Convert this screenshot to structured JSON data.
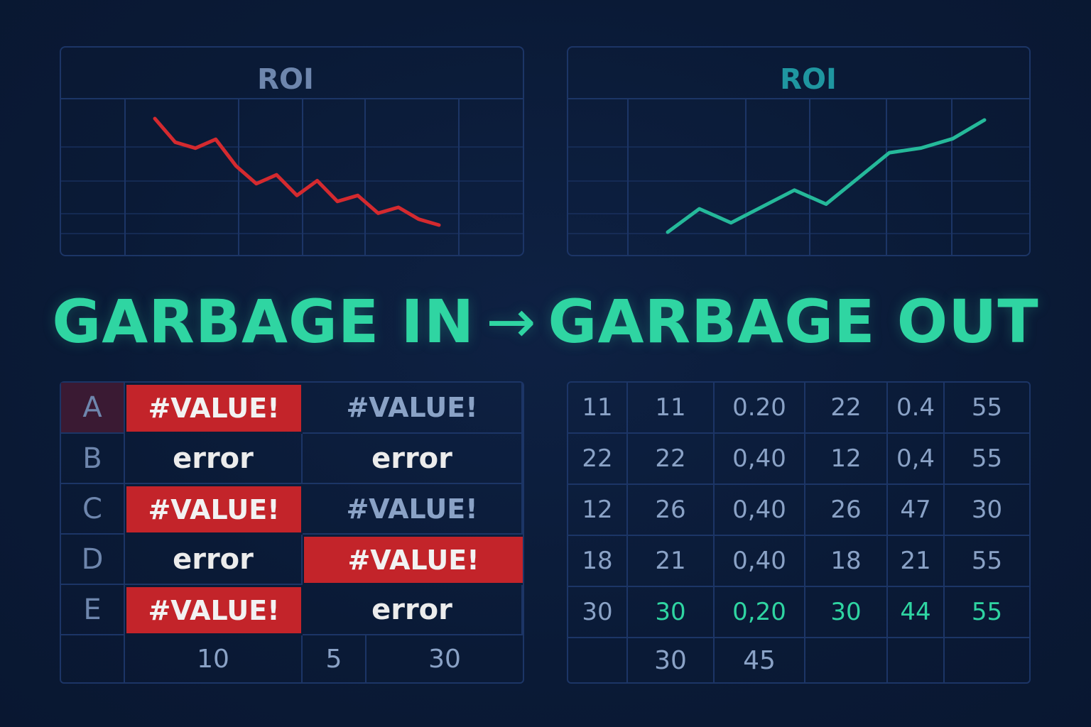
{
  "colors": {
    "background": "#0a1a36",
    "grid": "#1c3566",
    "bad_line": "#d42a2f",
    "good_line": "#25b99a",
    "accent_green": "#2fd5a2",
    "error_red": "#c3242a"
  },
  "chart_data": [
    {
      "type": "line",
      "title": "ROI",
      "series": [
        {
          "values": [
            100,
            92,
            90,
            93,
            84,
            78,
            81,
            74,
            79,
            72,
            74,
            68,
            70,
            66,
            64
          ]
        }
      ],
      "color": "#d42a2f",
      "grid": true
    },
    {
      "type": "line",
      "title": "ROI",
      "series": [
        {
          "values": [
            10,
            20,
            14,
            21,
            28,
            22,
            33,
            44,
            46,
            50,
            58
          ]
        }
      ],
      "color": "#25b99a",
      "grid": true
    }
  ],
  "headline": {
    "left": "GARBAGE IN",
    "arrow": "→",
    "right": "GARBAGE OUT"
  },
  "input_table": {
    "rows": [
      {
        "label": "A",
        "col1": "#VALUE!",
        "col2": "#VALUE!"
      },
      {
        "label": "B",
        "col1": "error",
        "col2": "error"
      },
      {
        "label": "C",
        "col1": "#VALUE!",
        "col2": "#VALUE!"
      },
      {
        "label": "D",
        "col1": "error",
        "col2": "#VALUE!"
      },
      {
        "label": "E",
        "col1": "#VALUE!",
        "col2": "error"
      }
    ],
    "footer": [
      "10",
      "5",
      "30"
    ]
  },
  "output_table": {
    "rows": [
      [
        "11",
        "11",
        "0.20",
        "22",
        "0.4",
        "55"
      ],
      [
        "22",
        "22",
        "0,40",
        "12",
        "0,4",
        "55"
      ],
      [
        "12",
        "26",
        "0,40",
        "26",
        "47",
        "30"
      ],
      [
        "18",
        "21",
        "0,40",
        "18",
        "21",
        "55"
      ],
      [
        "30",
        "30",
        "0,20",
        "30",
        "44",
        "55"
      ]
    ],
    "footer": [
      "30",
      "45"
    ]
  }
}
